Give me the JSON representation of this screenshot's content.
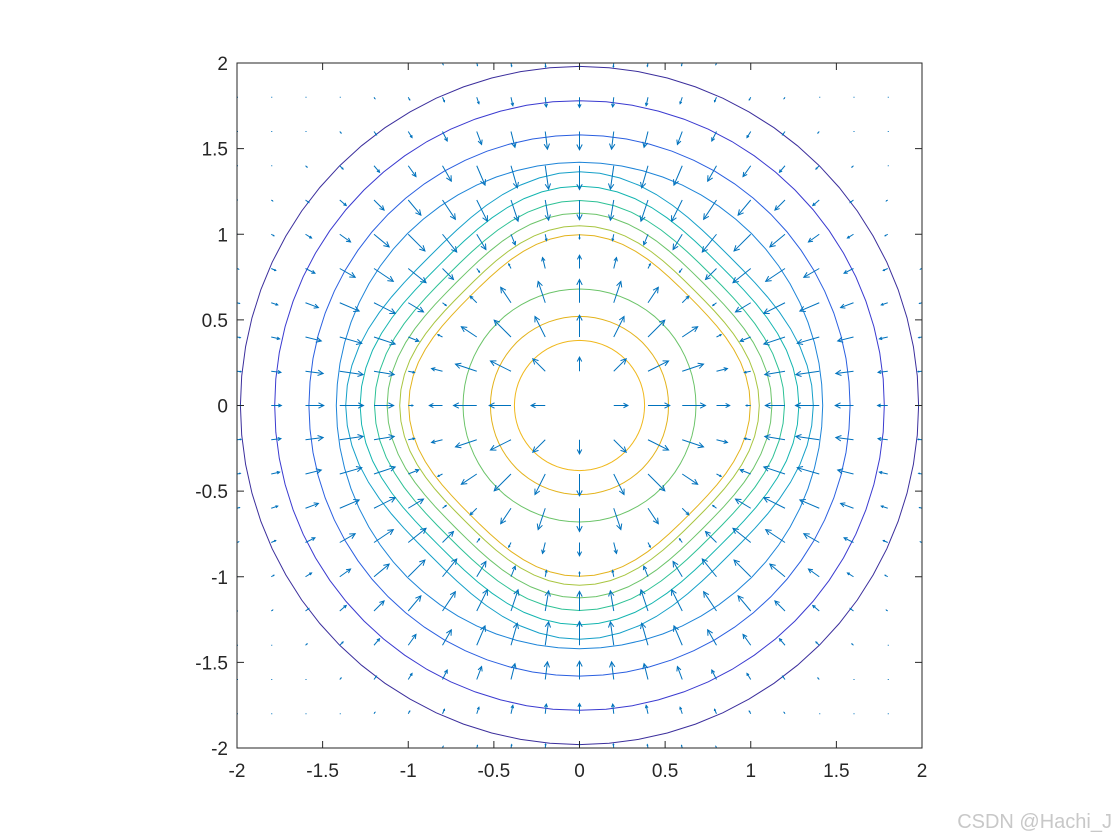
{
  "chart_data": {
    "type": "contour+quiver",
    "title": "",
    "xlabel": "",
    "ylabel": "",
    "xlim": [
      -2,
      2
    ],
    "ylim": [
      -2,
      2
    ],
    "x_ticks": [
      "-2",
      "-1.5",
      "-1",
      "-0.5",
      "0",
      "0.5",
      "1",
      "1.5",
      "2"
    ],
    "y_ticks": [
      "2",
      "1.5",
      "1",
      "0.5",
      "0",
      "-0.5",
      "-1",
      "-1.5",
      "-2"
    ],
    "grid": false,
    "box": true,
    "aspect": "equal",
    "field": {
      "description_of_levels": "concentric contour rings, peak ring near radius 0.95 with square-symmetric lobes",
      "contour_radii": [
        1.98,
        1.78,
        1.58,
        1.42,
        1.3,
        1.22,
        1.14,
        1.07,
        1.0,
        0.95,
        0.68,
        0.52,
        0.38
      ],
      "contour_colors": [
        "#3b2e9c",
        "#3a3ad0",
        "#2a5fe0",
        "#1d84d8",
        "#15a0c8",
        "#14b5b0",
        "#2dc195",
        "#6cc46a",
        "#a8c540",
        "#e3b31c",
        "#6cc46a",
        "#e3b31c",
        "#f0b81c"
      ]
    },
    "quiver": {
      "grid_step": 0.2,
      "color": "#0072bd",
      "direction": "toward peak ring at radius ~0.95"
    }
  },
  "watermark": "CSDN @Hachi_J"
}
